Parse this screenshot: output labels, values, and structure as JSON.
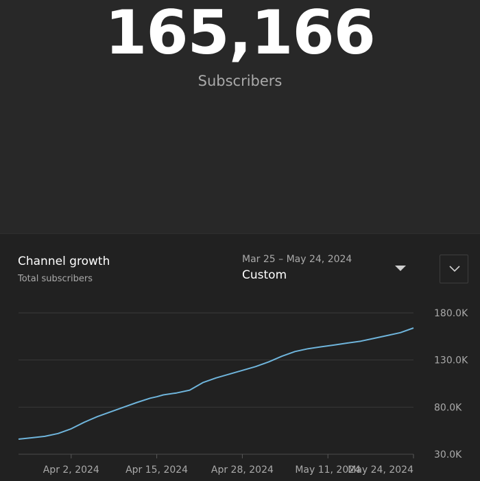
{
  "header": {
    "subscriber_count": "165,166",
    "subscriber_label": "Subscribers"
  },
  "growth_card": {
    "title": "Channel growth",
    "subtitle": "Total subscribers",
    "date_range": "Mar 25 – May 24, 2024",
    "range_mode": "Custom",
    "dropdown_icon": "caret-down-icon",
    "expand_icon": "chevron-down-icon"
  },
  "colors": {
    "line": "#6fb5dc",
    "grid": "#3a3a3a",
    "background": "#212121"
  },
  "chart_data": {
    "type": "line",
    "title": "Channel growth",
    "subtitle": "Total subscribers",
    "ylim": [
      30000,
      180000
    ],
    "y_ticks": [
      {
        "value": 180000,
        "label": "180.0K"
      },
      {
        "value": 130000,
        "label": "130.0K"
      },
      {
        "value": 80000,
        "label": "80.0K"
      },
      {
        "value": 30000,
        "label": "30.0K"
      }
    ],
    "x_ticks": [
      {
        "date": "2024-04-02",
        "label": "Apr 2, 2024"
      },
      {
        "date": "2024-04-15",
        "label": "Apr 15, 2024"
      },
      {
        "date": "2024-04-28",
        "label": "Apr 28, 2024"
      },
      {
        "date": "2024-05-11",
        "label": "May 11, 2024"
      },
      {
        "date": "2024-05-24",
        "label": "May 24, 2024"
      }
    ],
    "xlim": [
      "2024-03-25",
      "2024-05-24"
    ],
    "grid": true,
    "series": [
      {
        "points": [
          {
            "x": "2024-03-25",
            "y": 46000
          },
          {
            "x": "2024-03-27",
            "y": 47500
          },
          {
            "x": "2024-03-29",
            "y": 49000
          },
          {
            "x": "2024-03-31",
            "y": 52000
          },
          {
            "x": "2024-04-02",
            "y": 57000
          },
          {
            "x": "2024-04-04",
            "y": 64000
          },
          {
            "x": "2024-04-06",
            "y": 70000
          },
          {
            "x": "2024-04-08",
            "y": 75000
          },
          {
            "x": "2024-04-10",
            "y": 80000
          },
          {
            "x": "2024-04-12",
            "y": 85000
          },
          {
            "x": "2024-04-14",
            "y": 89500
          },
          {
            "x": "2024-04-15",
            "y": 91000
          },
          {
            "x": "2024-04-16",
            "y": 93000
          },
          {
            "x": "2024-04-18",
            "y": 95000
          },
          {
            "x": "2024-04-20",
            "y": 98000
          },
          {
            "x": "2024-04-21",
            "y": 102000
          },
          {
            "x": "2024-04-22",
            "y": 106000
          },
          {
            "x": "2024-04-24",
            "y": 111000
          },
          {
            "x": "2024-04-26",
            "y": 115000
          },
          {
            "x": "2024-04-28",
            "y": 119000
          },
          {
            "x": "2024-04-30",
            "y": 123000
          },
          {
            "x": "2024-05-02",
            "y": 128000
          },
          {
            "x": "2024-05-04",
            "y": 134000
          },
          {
            "x": "2024-05-06",
            "y": 139000
          },
          {
            "x": "2024-05-08",
            "y": 142000
          },
          {
            "x": "2024-05-10",
            "y": 144000
          },
          {
            "x": "2024-05-12",
            "y": 146000
          },
          {
            "x": "2024-05-14",
            "y": 148000
          },
          {
            "x": "2024-05-16",
            "y": 150000
          },
          {
            "x": "2024-05-18",
            "y": 153000
          },
          {
            "x": "2024-05-20",
            "y": 156000
          },
          {
            "x": "2024-05-22",
            "y": 159000
          },
          {
            "x": "2024-05-24",
            "y": 164000
          }
        ]
      }
    ]
  }
}
